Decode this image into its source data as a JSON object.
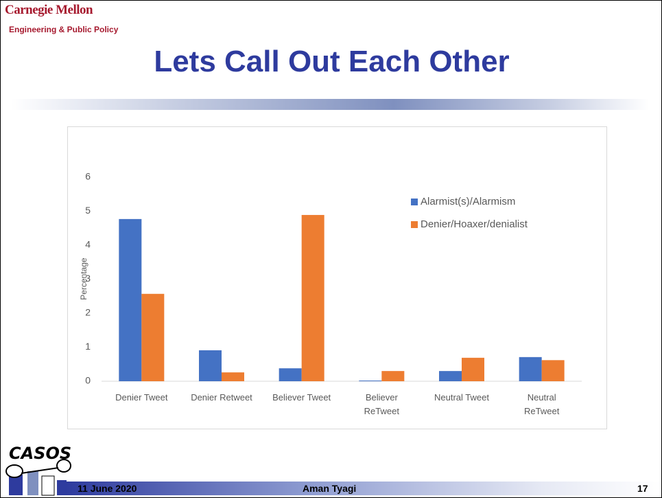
{
  "header": {
    "institution": "Carnegie Mellon",
    "department": "Engineering & Public Policy",
    "title": "Lets Call Out Each Other"
  },
  "chart_data": {
    "type": "bar",
    "y_label": "Percentage",
    "categories": [
      "Denier Tweet",
      "Denier Retweet",
      "Believer Tweet",
      "Believer ReTweet",
      "Neutral Tweet",
      "Neutral ReTweet"
    ],
    "series": [
      {
        "name": "Alarmist(s)/Alarmism",
        "color": "#4472c4",
        "values": [
          4.77,
          0.91,
          0.38,
          0.02,
          0.3,
          0.71
        ]
      },
      {
        "name": "Denier/Hoaxer/denialist",
        "color": "#ed7d31",
        "values": [
          2.57,
          0.26,
          4.89,
          0.3,
          0.69,
          0.62
        ]
      }
    ],
    "ylim": [
      0,
      6
    ],
    "yticks": [
      0,
      1,
      2,
      3,
      4,
      5,
      6
    ],
    "grid": false,
    "legend": "upper right"
  },
  "logo": "CASOS",
  "footer": {
    "date": "11 June 2020",
    "author": "Aman Tyagi",
    "page": "17"
  }
}
